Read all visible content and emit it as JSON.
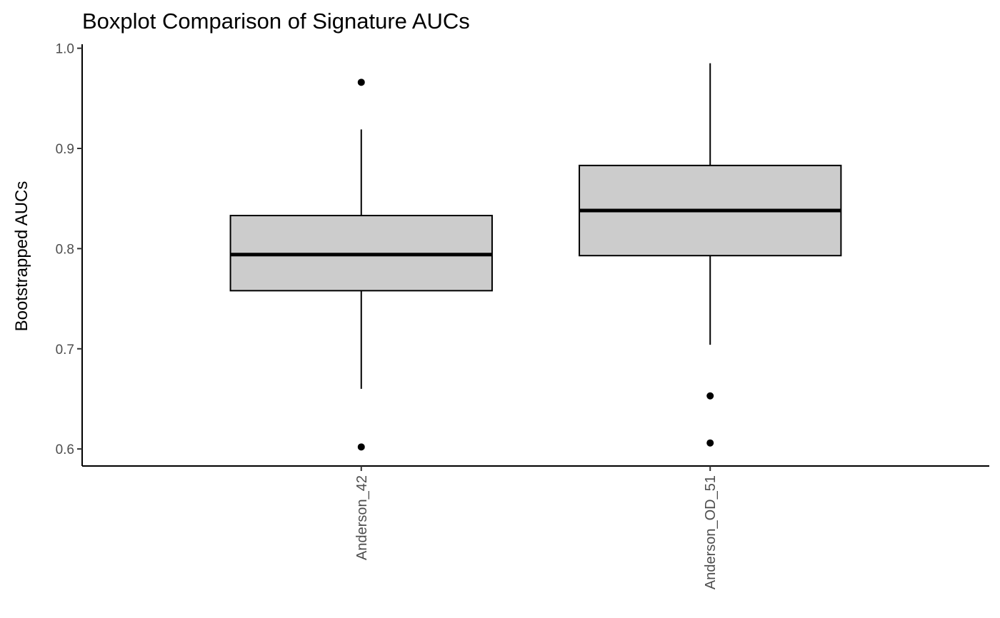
{
  "chart_data": {
    "type": "boxplot",
    "title": "Boxplot Comparison of Signature AUCs",
    "xlabel": "",
    "ylabel": "Bootstrapped AUCs",
    "ylim": [
      0.583,
      1.004
    ],
    "yticks": [
      "0.6",
      "0.7",
      "0.8",
      "0.9",
      "1.0"
    ],
    "grid": false,
    "box_fill": "#cccccc",
    "line_color": "#000000",
    "series": [
      {
        "category": "Anderson_42",
        "whisker_low": 0.66,
        "q1": 0.758,
        "median": 0.794,
        "q3": 0.833,
        "whisker_high": 0.919,
        "outliers": [
          0.966,
          0.602
        ]
      },
      {
        "category": "Anderson_OD_51",
        "whisker_low": 0.704,
        "q1": 0.793,
        "median": 0.838,
        "q3": 0.883,
        "whisker_high": 0.985,
        "outliers": [
          0.653,
          0.606
        ]
      }
    ]
  }
}
